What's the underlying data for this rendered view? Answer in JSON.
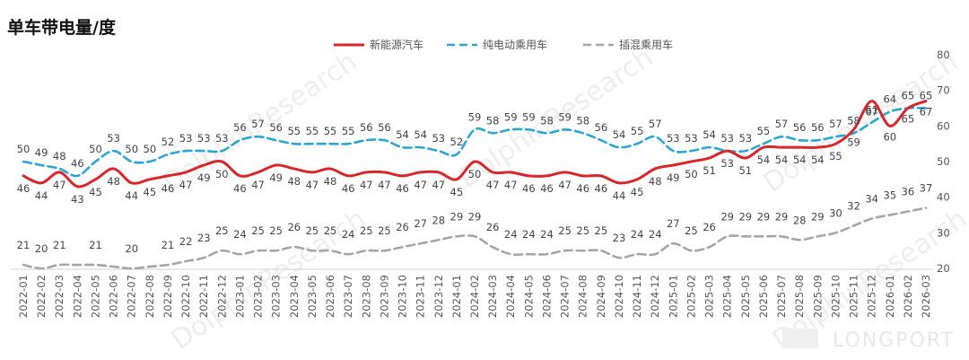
{
  "header": {
    "title": "单车带电量/度"
  },
  "watermarks": {
    "brand": "DolphinResearch",
    "logo": "LONGPORT"
  },
  "chart_data": {
    "type": "line",
    "title": "单车带电量/度",
    "ylim": [
      20,
      80
    ],
    "yticks": [
      20,
      30,
      40,
      50,
      60,
      70,
      80
    ],
    "grid": false,
    "legend_position": "top-center",
    "categories": [
      "2022-01",
      "2022-02",
      "2022-03",
      "2022-04",
      "2022-05",
      "2022-06",
      "2022-07",
      "2022-08",
      "2022-09",
      "2022-10",
      "2022-11",
      "2022-12",
      "2023-01",
      "2023-02",
      "2023-03",
      "2023-04",
      "2023-05",
      "2023-06",
      "2023-07",
      "2023-08",
      "2023-09",
      "2023-10",
      "2023-11",
      "2023-12",
      "2024-01",
      "2024-02",
      "2024-03",
      "2024-04",
      "2024-05",
      "2024-06",
      "2024-07",
      "2024-08",
      "2024-09",
      "2024-10",
      "2024-11",
      "2024-12",
      "2025-01",
      "2025-02",
      "2025-03",
      "2025-04",
      "2025-05",
      "2025-06",
      "2025-07",
      "2025-08",
      "2025-09",
      "2025-10",
      "2025-11",
      "2025-12",
      "2026-01",
      "2026-02",
      "2026-03"
    ],
    "series": [
      {
        "name": "新能源汽车",
        "color": "#d9262b",
        "dash": "solid",
        "values": [
          46,
          44,
          47,
          43,
          45,
          48,
          44,
          45,
          46,
          47,
          49,
          50,
          46,
          47,
          49,
          48,
          47,
          48,
          46,
          47,
          47,
          46,
          47,
          47,
          45,
          50,
          47,
          47,
          46,
          46,
          47,
          46,
          46,
          44,
          45,
          48,
          49,
          50,
          51,
          53,
          51,
          54,
          54,
          54,
          54,
          55,
          59,
          67,
          60,
          65,
          67
        ]
      },
      {
        "name": "纯电动乘用车",
        "color": "#2aa6d6",
        "dash": "dashed",
        "values": [
          50,
          49,
          48,
          46,
          50,
          53,
          50,
          50,
          52,
          53,
          53,
          53,
          56,
          57,
          56,
          55,
          55,
          55,
          55,
          56,
          56,
          54,
          54,
          53,
          52,
          59,
          58,
          59,
          59,
          58,
          59,
          58,
          56,
          54,
          55,
          57,
          53,
          53,
          54,
          53,
          53,
          55,
          57,
          56,
          56,
          57,
          58,
          61,
          64,
          65,
          65
        ]
      },
      {
        "name": "插混乘用车",
        "color": "#a6a6a6",
        "dash": "dashed",
        "values": [
          21,
          20,
          21,
          null,
          21,
          null,
          20,
          null,
          21,
          22,
          23,
          25,
          24,
          25,
          25,
          26,
          25,
          25,
          24,
          25,
          25,
          26,
          27,
          28,
          29,
          29,
          26,
          24,
          24,
          24,
          25,
          25,
          25,
          23,
          24,
          24,
          27,
          25,
          26,
          29,
          29,
          29,
          29,
          28,
          29,
          30,
          32,
          34,
          35,
          36,
          37
        ]
      }
    ]
  }
}
